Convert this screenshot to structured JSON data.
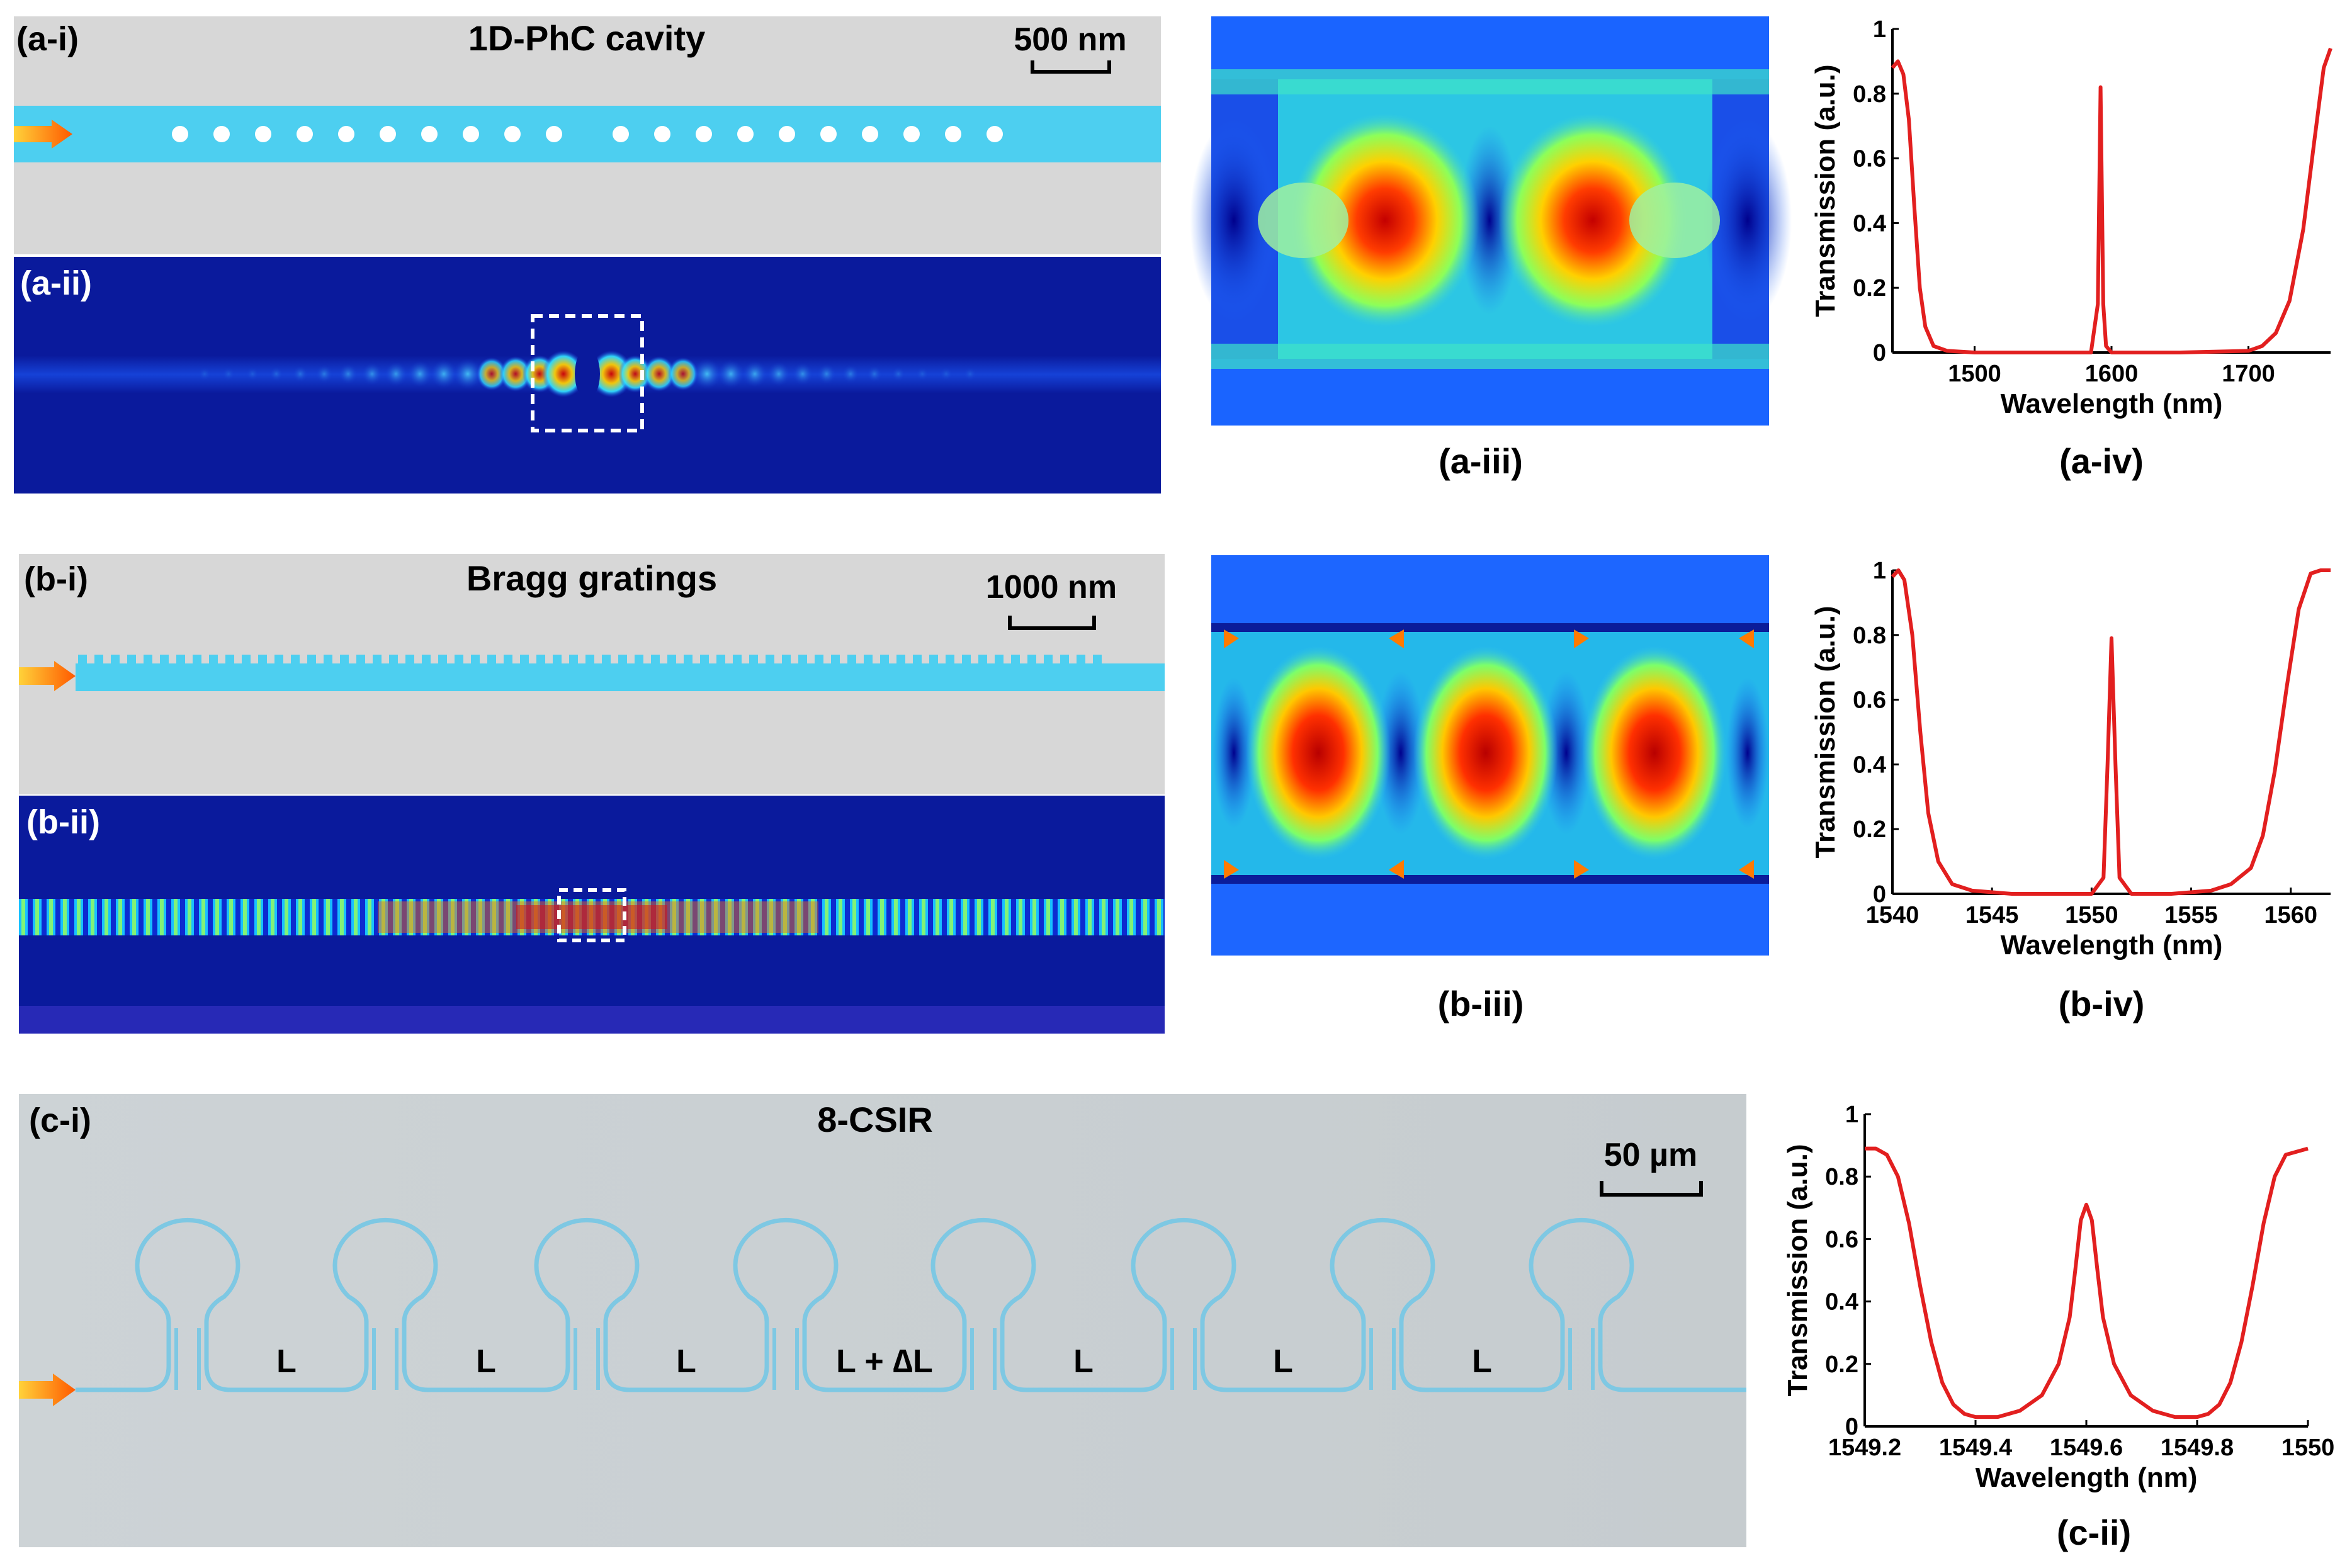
{
  "panels": {
    "a_i": {
      "label": "(a-i)",
      "title": "1D-PhC cavity",
      "scale": "500 nm"
    },
    "a_ii": {
      "label": "(a-ii)"
    },
    "a_iii": {
      "label": "(a-iii)"
    },
    "a_iv": {
      "label": "(a-iv)"
    },
    "b_i": {
      "label": "(b-i)",
      "title": "Bragg gratings",
      "scale": "1000 nm"
    },
    "b_ii": {
      "label": "(b-ii)"
    },
    "b_iii": {
      "label": "(b-iii)"
    },
    "b_iv": {
      "label": "(b-iv)"
    },
    "c_i": {
      "label": "(c-i)",
      "title": "8-CSIR",
      "scale": "50 µm",
      "spacings": [
        "L",
        "L",
        "L",
        "L + ∆L",
        "L",
        "L",
        "L"
      ]
    },
    "c_ii": {
      "label": "(c-ii)"
    }
  },
  "colors": {
    "waveguide": "#4dcff0",
    "background": "#d7d7d7",
    "field_bg": "#0a1a9c",
    "curve": "#e21f1f",
    "ring": "#7ec8e3"
  },
  "chart_data": [
    {
      "type": "line",
      "id": "a_iv",
      "xlabel": "Wavelength (nm)",
      "ylabel": "Transmission (a.u.)",
      "xlim": [
        1440,
        1760
      ],
      "ylim": [
        0,
        1
      ],
      "xticks": [
        "1500",
        "1600",
        "1700"
      ],
      "xtick_values": [
        1500,
        1600,
        1700
      ],
      "yticks": [
        "0",
        "0.2",
        "0.4",
        "0.6",
        "0.8",
        "1"
      ],
      "ytick_values": [
        0,
        0.2,
        0.4,
        0.6,
        0.8,
        1
      ],
      "series": [
        {
          "x": [
            1440,
            1444,
            1448,
            1452,
            1456,
            1460,
            1464,
            1470,
            1480,
            1500,
            1550,
            1585,
            1590,
            1592,
            1594,
            1596,
            1600,
            1650,
            1700,
            1710,
            1720,
            1730,
            1740,
            1748,
            1755,
            1760
          ],
          "y": [
            0.88,
            0.9,
            0.86,
            0.72,
            0.45,
            0.2,
            0.08,
            0.02,
            0.005,
            0,
            0,
            0,
            0.15,
            0.82,
            0.15,
            0.02,
            0,
            0,
            0.005,
            0.02,
            0.06,
            0.16,
            0.38,
            0.65,
            0.88,
            0.94
          ]
        }
      ]
    },
    {
      "type": "line",
      "id": "b_iv",
      "xlabel": "Wavelength (nm)",
      "ylabel": "Transmission (a.u.)",
      "xlim": [
        1540,
        1562
      ],
      "ylim": [
        0,
        1
      ],
      "xticks": [
        "1540",
        "1545",
        "1550",
        "1555",
        "1560"
      ],
      "xtick_values": [
        1540,
        1545,
        1550,
        1555,
        1560
      ],
      "yticks": [
        "0",
        "0.2",
        "0.4",
        "0.6",
        "0.8",
        "1"
      ],
      "ytick_values": [
        0,
        0.2,
        0.4,
        0.6,
        0.8,
        1
      ],
      "series": [
        {
          "x": [
            1540,
            1540.3,
            1540.6,
            1541,
            1541.4,
            1541.8,
            1542.3,
            1543,
            1544,
            1546,
            1548,
            1550,
            1550.6,
            1550.8,
            1551,
            1551.2,
            1551.4,
            1552,
            1554,
            1556,
            1557,
            1558,
            1558.6,
            1559.2,
            1559.8,
            1560.4,
            1561,
            1561.5,
            1562
          ],
          "y": [
            0.98,
            1,
            0.97,
            0.8,
            0.5,
            0.25,
            0.1,
            0.03,
            0.01,
            0,
            0,
            0,
            0.05,
            0.4,
            0.79,
            0.4,
            0.05,
            0,
            0,
            0.01,
            0.03,
            0.08,
            0.18,
            0.38,
            0.64,
            0.88,
            0.99,
            1,
            1
          ]
        }
      ]
    },
    {
      "type": "line",
      "id": "c_ii",
      "xlabel": "Wavelength (nm)",
      "ylabel": "Transmission (a.u.)",
      "xlim": [
        1549.2,
        1550
      ],
      "ylim": [
        0,
        1
      ],
      "xticks": [
        "1549.2",
        "1549.4",
        "1549.6",
        "1549.8",
        "1550"
      ],
      "xtick_values": [
        1549.2,
        1549.4,
        1549.6,
        1549.8,
        1550
      ],
      "yticks": [
        "0",
        "0.2",
        "0.4",
        "0.6",
        "0.8",
        "1"
      ],
      "ytick_values": [
        0,
        0.2,
        0.4,
        0.6,
        0.8,
        1
      ],
      "series": [
        {
          "x": [
            1549.2,
            1549.22,
            1549.24,
            1549.26,
            1549.28,
            1549.3,
            1549.32,
            1549.34,
            1549.36,
            1549.38,
            1549.4,
            1549.44,
            1549.48,
            1549.52,
            1549.55,
            1549.57,
            1549.58,
            1549.59,
            1549.6,
            1549.61,
            1549.62,
            1549.63,
            1549.65,
            1549.68,
            1549.72,
            1549.76,
            1549.8,
            1549.82,
            1549.84,
            1549.86,
            1549.88,
            1549.9,
            1549.92,
            1549.94,
            1549.96,
            1550
          ],
          "y": [
            0.89,
            0.89,
            0.87,
            0.8,
            0.65,
            0.45,
            0.27,
            0.14,
            0.07,
            0.04,
            0.03,
            0.03,
            0.05,
            0.1,
            0.2,
            0.35,
            0.5,
            0.66,
            0.71,
            0.66,
            0.5,
            0.35,
            0.2,
            0.1,
            0.05,
            0.03,
            0.03,
            0.04,
            0.07,
            0.14,
            0.27,
            0.45,
            0.65,
            0.8,
            0.87,
            0.89
          ]
        }
      ]
    }
  ]
}
